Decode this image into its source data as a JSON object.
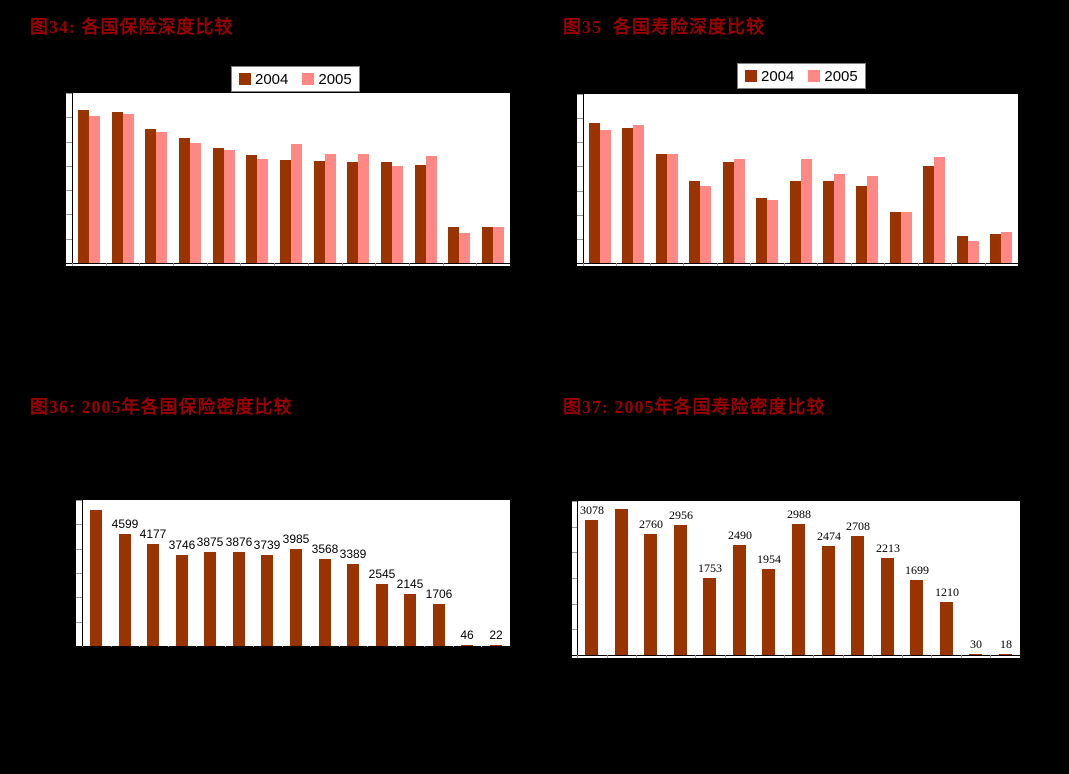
{
  "colors": {
    "background": "#000000",
    "panel": "#FFFFFF",
    "title": "#990000",
    "bar_2004": "#993300",
    "bar_2005": "#FF8884",
    "axis": "#000000",
    "tick": "#999999",
    "legend_text": "#000000",
    "legend_border": "#808080",
    "data_label_text": "#000000"
  },
  "chart_data": [
    {
      "id": "figure-34",
      "type": "bar",
      "title": "图34: 各国保险深度比较",
      "legend_entries": [
        "2004",
        "2005"
      ],
      "legend_position": "top-center",
      "grid": false,
      "categories": [
        "",
        "",
        "",
        "",
        "",
        "",
        "",
        "",
        "",
        "",
        "",
        "",
        ""
      ],
      "series": [
        {
          "name": "2004",
          "values": [
            12.6,
            12.4,
            11.0,
            10.3,
            9.5,
            8.9,
            8.5,
            8.4,
            8.3,
            8.3,
            8.1,
            3.0,
            3.0
          ]
        },
        {
          "name": "2005",
          "values": [
            12.1,
            12.3,
            10.8,
            9.9,
            9.3,
            8.6,
            9.8,
            9.0,
            9.0,
            8.0,
            8.8,
            2.5,
            3.0
          ]
        }
      ],
      "ylim": [
        0,
        14
      ],
      "note": "Axis tick labels and category names are not visible in the image (black-on-black); values estimated from bar heights."
    },
    {
      "id": "figure-35",
      "type": "bar",
      "title": "图35  各国寿险深度比较",
      "legend_entries": [
        "2004",
        "2005"
      ],
      "legend_position": "top-center",
      "grid": false,
      "categories": [
        "",
        "",
        "",
        "",
        "",
        "",
        "",
        "",
        "",
        "",
        "",
        "",
        ""
      ],
      "series": [
        {
          "name": "2004",
          "values": [
            5.8,
            5.6,
            4.5,
            3.4,
            4.2,
            2.7,
            3.4,
            3.4,
            3.2,
            2.1,
            4.0,
            1.1,
            1.2
          ]
        },
        {
          "name": "2005",
          "values": [
            5.5,
            5.7,
            4.5,
            3.2,
            4.3,
            2.6,
            4.3,
            3.7,
            3.6,
            2.1,
            4.4,
            0.9,
            1.3
          ]
        }
      ],
      "ylim": [
        0,
        7
      ],
      "note": "Axis tick labels and category names are not visible in the image (black-on-black); values estimated from bar heights."
    },
    {
      "id": "figure-36",
      "type": "bar",
      "title": "图36: 2005年各国保险密度比较",
      "categories": [
        "",
        "",
        "",
        "",
        "",
        "",
        "",
        "",
        "",
        "",
        "",
        "",
        "",
        "",
        ""
      ],
      "values": [
        5590,
        4599,
        4177,
        3746,
        3875,
        3876,
        3739,
        3985,
        3568,
        3389,
        2545,
        2145,
        1706,
        46,
        22
      ],
      "data_labels": [
        "",
        "4599",
        "4177",
        "3746",
        "3875",
        "3876",
        "3739",
        "3985",
        "3568",
        "3389",
        "2545",
        "2145",
        "1706",
        "46",
        "22"
      ],
      "ylim": [
        0,
        6000
      ],
      "grid": false,
      "note": "First bar's data label is cut off (not visible); its value 5590 is estimated from bar height. Category names not visible."
    },
    {
      "id": "figure-37",
      "type": "bar",
      "title": "图37: 2005年各国寿险密度比较",
      "categories": [
        "",
        "",
        "",
        "",
        "",
        "",
        "",
        "",
        "",
        "",
        "",
        "",
        "",
        "",
        ""
      ],
      "values": [
        3078,
        3310,
        2760,
        2956,
        1753,
        2490,
        1954,
        2988,
        2474,
        2708,
        2213,
        1699,
        1210,
        30,
        18
      ],
      "data_labels": [
        "3078",
        "",
        "2760",
        "2956",
        "1753",
        "2490",
        "1954",
        "2988",
        "2474",
        "2708",
        "2213",
        "1699",
        "1210",
        "30",
        "18"
      ],
      "ylim": [
        0,
        3500
      ],
      "grid": false,
      "note": "Second bar's data label is cut off (not visible); its value 3310 is estimated from bar height. Category names not visible."
    }
  ]
}
